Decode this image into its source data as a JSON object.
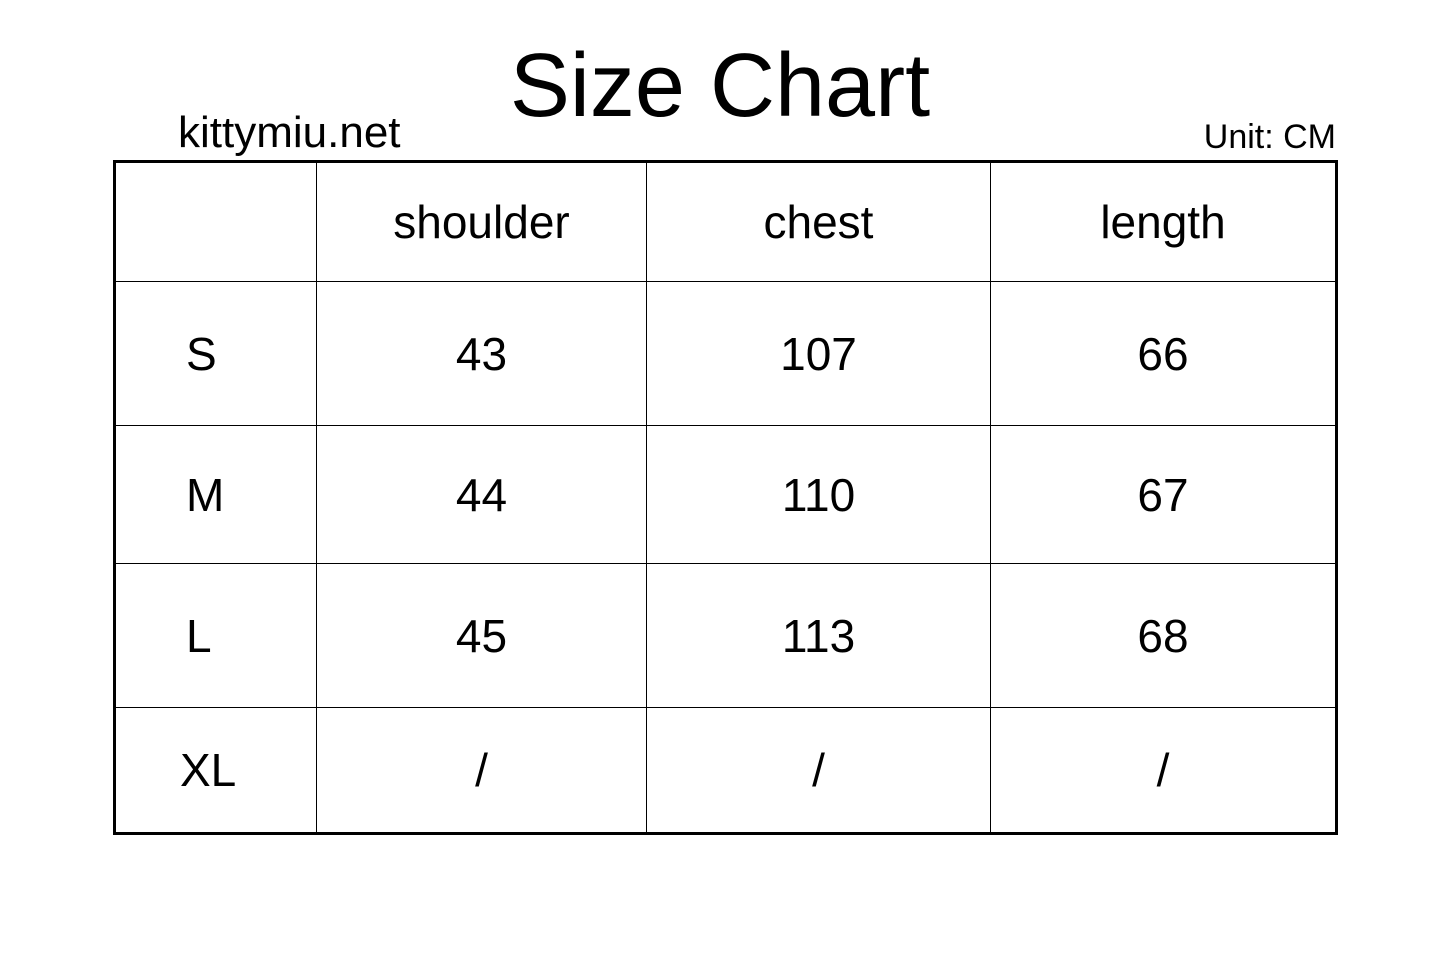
{
  "title": "Size Chart",
  "site": "kittymiu.net",
  "unit": "Unit: CM",
  "table": {
    "headers": [
      "",
      "shoulder",
      "chest",
      "length"
    ],
    "rows": [
      [
        "S",
        "43",
        "107",
        "66"
      ],
      [
        "M",
        "44",
        "110",
        "67"
      ],
      [
        "L",
        "45",
        "113",
        "68"
      ],
      [
        "XL",
        "/",
        "/",
        "/"
      ]
    ]
  }
}
